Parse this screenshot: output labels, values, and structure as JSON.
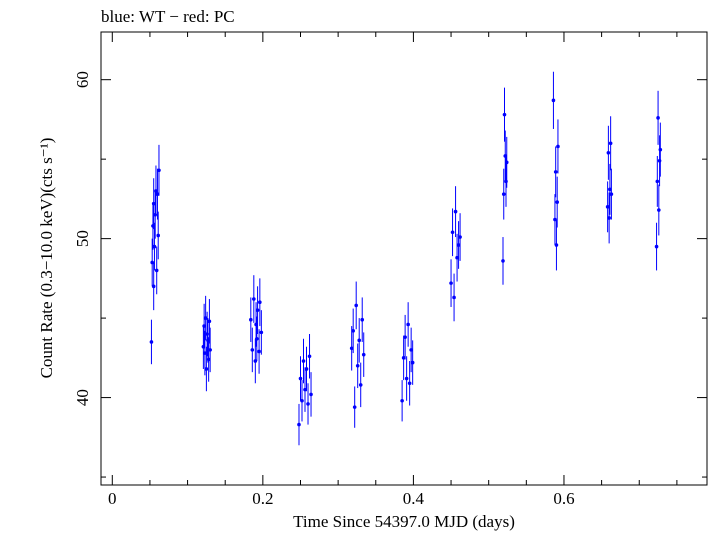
{
  "chart_data": {
    "type": "scatter",
    "title": "blue: WT − red: PC",
    "xlabel": "Time Since 54397.0 MJD (days)",
    "ylabel": "Count Rate (0.3−10.0 keV)(cts s⁻¹)",
    "xlim": [
      -0.015,
      0.79
    ],
    "ylim": [
      34.5,
      63
    ],
    "x_ticks": [
      0,
      0.2,
      0.4,
      0.6
    ],
    "x_tick_labels": [
      "0",
      "0.2",
      "0.4",
      "0.6"
    ],
    "y_ticks": [
      40,
      50,
      60
    ],
    "y_tick_labels": [
      "40",
      "50",
      "60"
    ],
    "grid": false,
    "colors": {
      "WT": "#0000ff",
      "PC": "#ff0000"
    },
    "series": [
      {
        "name": "WT",
        "x": [
          0.052,
          0.053,
          0.054,
          0.055,
          0.055,
          0.056,
          0.057,
          0.058,
          0.059,
          0.06,
          0.061,
          0.062,
          0.121,
          0.122,
          0.123,
          0.124,
          0.125,
          0.126,
          0.127,
          0.128,
          0.129,
          0.13,
          0.184,
          0.186,
          0.188,
          0.19,
          0.191,
          0.192,
          0.193,
          0.195,
          0.196,
          0.198,
          0.248,
          0.25,
          0.252,
          0.254,
          0.256,
          0.258,
          0.26,
          0.262,
          0.264,
          0.318,
          0.32,
          0.322,
          0.324,
          0.326,
          0.328,
          0.33,
          0.332,
          0.334,
          0.385,
          0.387,
          0.389,
          0.391,
          0.393,
          0.395,
          0.397,
          0.399,
          0.45,
          0.452,
          0.454,
          0.456,
          0.458,
          0.46,
          0.462,
          0.519,
          0.52,
          0.521,
          0.522,
          0.523,
          0.524,
          0.586,
          0.588,
          0.589,
          0.59,
          0.591,
          0.592,
          0.658,
          0.659,
          0.66,
          0.661,
          0.662,
          0.663,
          0.723,
          0.724,
          0.725,
          0.726,
          0.727,
          0.728
        ],
        "y": [
          43.5,
          48.5,
          50.8,
          47.0,
          52.2,
          49.5,
          51.5,
          53.0,
          48.0,
          52.8,
          50.2,
          54.3,
          43.2,
          44.5,
          42.8,
          45.0,
          41.8,
          44.0,
          43.6,
          42.4,
          44.8,
          43.0,
          44.9,
          43.0,
          46.2,
          42.3,
          44.6,
          43.7,
          45.5,
          42.9,
          46.0,
          44.1,
          38.3,
          41.2,
          39.8,
          42.3,
          40.5,
          41.8,
          39.6,
          42.6,
          40.2,
          43.1,
          44.2,
          39.4,
          45.8,
          42.0,
          43.6,
          40.8,
          44.9,
          42.7,
          39.8,
          42.5,
          43.8,
          41.2,
          44.6,
          40.9,
          43.0,
          42.2,
          47.2,
          50.4,
          46.3,
          51.7,
          48.8,
          49.6,
          50.1,
          48.6,
          52.8,
          57.8,
          55.2,
          53.6,
          54.8,
          58.7,
          51.2,
          54.2,
          49.6,
          52.3,
          55.8,
          52.0,
          55.4,
          51.3,
          53.1,
          56.0,
          52.8,
          49.5,
          53.6,
          57.6,
          51.8,
          54.9,
          55.6
        ],
        "err": [
          1.4,
          1.5,
          1.5,
          1.5,
          1.6,
          1.5,
          1.5,
          1.6,
          1.5,
          1.6,
          1.5,
          1.6,
          1.4,
          1.4,
          1.4,
          1.4,
          1.4,
          1.4,
          1.4,
          1.4,
          1.4,
          1.4,
          1.4,
          1.4,
          1.5,
          1.4,
          1.4,
          1.4,
          1.5,
          1.4,
          1.5,
          1.4,
          1.3,
          1.4,
          1.3,
          1.4,
          1.4,
          1.4,
          1.3,
          1.4,
          1.4,
          1.4,
          1.4,
          1.3,
          1.5,
          1.4,
          1.4,
          1.4,
          1.4,
          1.4,
          1.3,
          1.4,
          1.4,
          1.4,
          1.4,
          1.4,
          1.4,
          1.4,
          1.5,
          1.5,
          1.5,
          1.6,
          1.5,
          1.5,
          1.5,
          1.5,
          1.6,
          1.7,
          1.6,
          1.6,
          1.6,
          1.8,
          1.6,
          1.6,
          1.6,
          1.6,
          1.7,
          1.6,
          1.7,
          1.6,
          1.6,
          1.7,
          1.6,
          1.5,
          1.6,
          1.7,
          1.6,
          1.6,
          1.7
        ]
      }
    ]
  }
}
